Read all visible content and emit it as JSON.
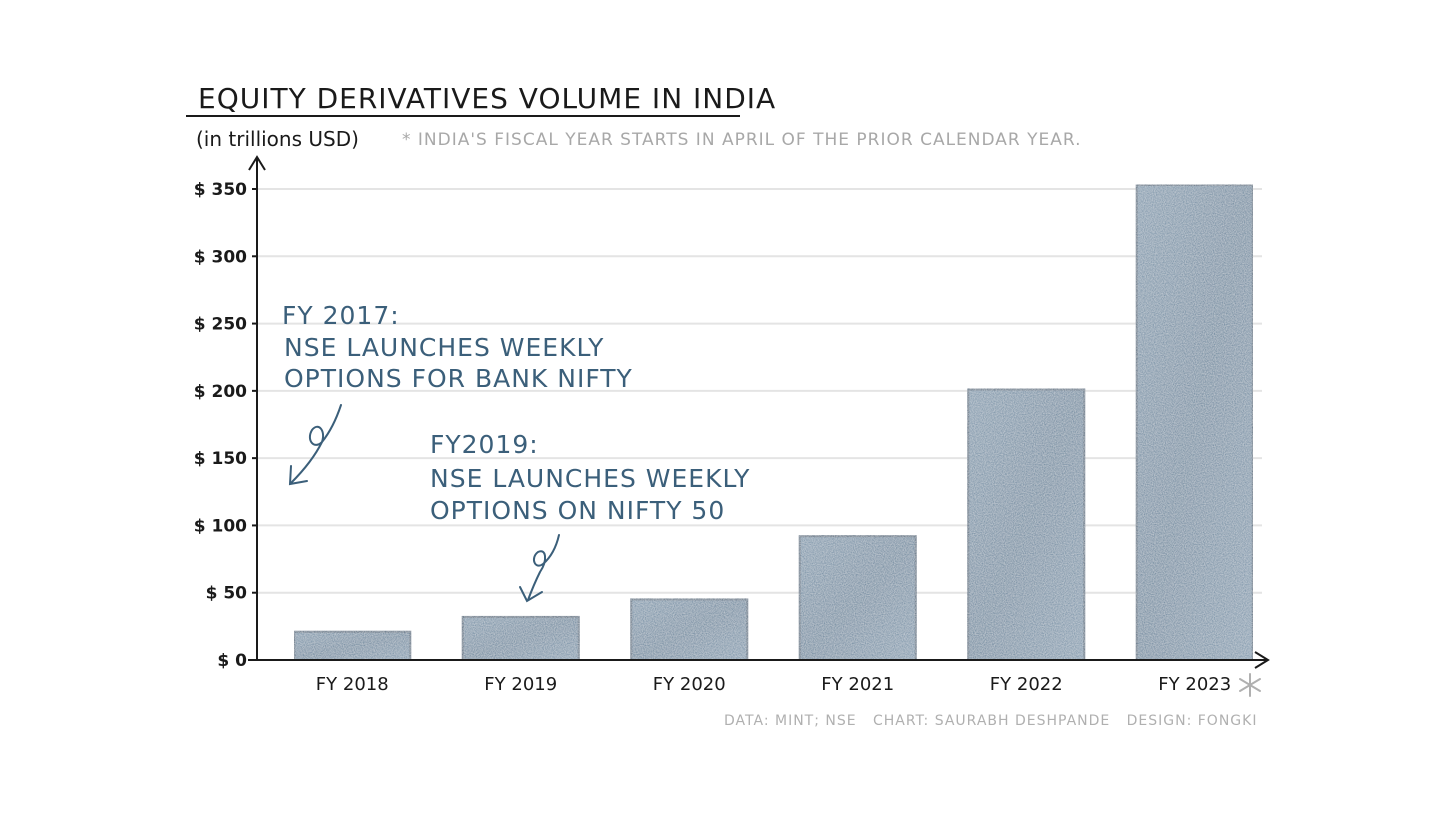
{
  "chart_data": {
    "type": "bar",
    "title": "EQUITY DERIVATIVES VOLUME IN INDIA",
    "ylabel": "(in trillions USD)",
    "note": "* INDIA'S FISCAL YEAR STARTS IN APRIL OF THE PRIOR CALENDAR YEAR.",
    "categories": [
      "FY 2018",
      "FY 2019",
      "FY 2020",
      "FY 2021",
      "FY 2022",
      "FY 2023"
    ],
    "values": [
      21,
      32,
      45,
      92,
      201,
      353
    ],
    "ylim": [
      0,
      350
    ],
    "yticks": [
      0,
      50,
      100,
      150,
      200,
      250,
      300,
      350
    ],
    "ytick_labels": [
      "$ 0",
      "$ 50",
      "$ 100",
      "$ 150",
      "$ 200",
      "$ 250",
      "$ 300",
      "$ 350"
    ],
    "grid": true,
    "bar_color": "#5d7f99",
    "annotations": [
      {
        "lines": [
          "FY 2017:",
          "NSE LAUNCHES WEEKLY",
          "OPTIONS FOR BANK NIFTY"
        ]
      },
      {
        "lines": [
          "FY2019:",
          "NSE LAUNCHES WEEKLY",
          "OPTIONS ON NIFTY 50"
        ]
      }
    ],
    "credits": "DATA: MINT; NSE   CHART: SAURABH DESHPANDE   DESIGN: FONGKI"
  }
}
